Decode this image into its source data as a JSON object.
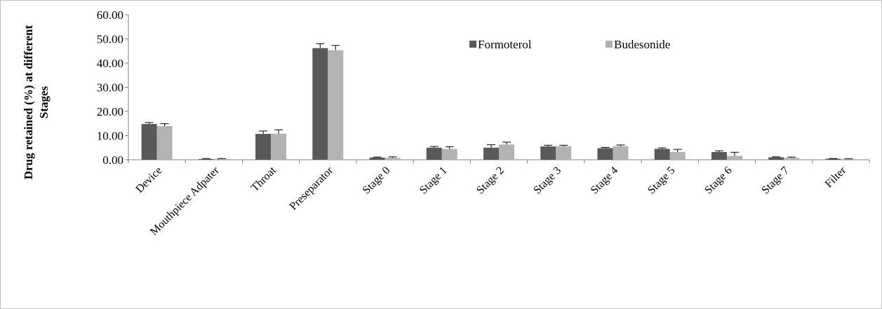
{
  "chart_data": {
    "type": "bar",
    "ylabel_line1": "Drug  retained (%) at different",
    "ylabel_line2": "Stages",
    "ylim": [
      0,
      60
    ],
    "yticks": [
      "0.00",
      "10.00",
      "20.00",
      "30.00",
      "40.00",
      "50.00",
      "60.00"
    ],
    "ytick_values": [
      0,
      10,
      20,
      30,
      40,
      50,
      60
    ],
    "categories": [
      "Device",
      "Mouthpiece Adpater",
      "Throat",
      "Preseparator",
      "Stage 0",
      "Stage 1",
      "Stage 2",
      "Stage 3",
      "Stage 4",
      "Stage 5",
      "Stage 6",
      "Stage 7",
      "Filter"
    ],
    "series": [
      {
        "name": "Formoterol",
        "color": "#595959",
        "values": [
          14.8,
          0.3,
          10.7,
          46.2,
          0.9,
          5.0,
          5.0,
          5.5,
          4.8,
          4.5,
          3.2,
          1.0,
          0.4
        ],
        "errors": [
          0.6,
          0.2,
          1.2,
          1.8,
          0.2,
          0.5,
          1.2,
          0.5,
          0.3,
          0.4,
          0.5,
          0.2,
          0.1
        ]
      },
      {
        "name": "Budesonide",
        "color": "#b3b3b3",
        "values": [
          13.9,
          0.3,
          10.8,
          45.3,
          0.8,
          4.5,
          6.3,
          5.6,
          5.6,
          3.2,
          1.6,
          0.8,
          0.3
        ],
        "errors": [
          1.0,
          0.2,
          1.6,
          2.0,
          0.4,
          0.9,
          1.0,
          0.4,
          0.5,
          1.1,
          1.5,
          0.3,
          0.1
        ]
      }
    ],
    "grid": false,
    "legend_position": "top-right"
  }
}
